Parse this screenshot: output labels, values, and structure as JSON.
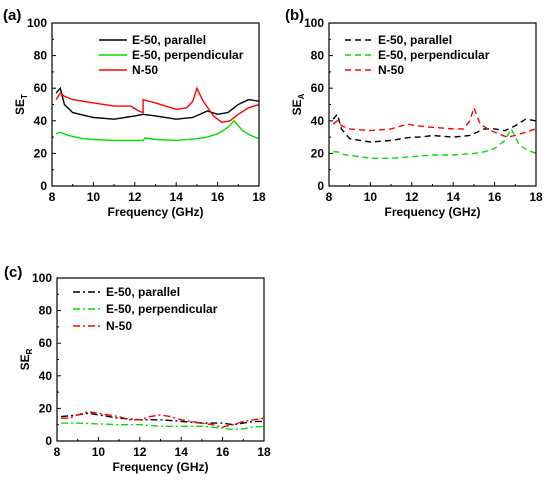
{
  "chart_data": [
    {
      "type": "line",
      "panel_label": "(a)",
      "xlabel": "Frequency (GHz)",
      "ylabel_main": "SE",
      "ylabel_sub": "T",
      "xlim": [
        8,
        18
      ],
      "ylim": [
        0,
        100
      ],
      "xticks": [
        8,
        10,
        12,
        14,
        16,
        18
      ],
      "yticks": [
        0,
        20,
        40,
        60,
        80,
        100
      ],
      "legend_position": "top-right",
      "series": [
        {
          "name": "E-50, parallel",
          "color": "#000000",
          "dash": "solid",
          "x": [
            8.2,
            8.4,
            8.6,
            9,
            10,
            11,
            12,
            12.4,
            13,
            14,
            14.8,
            15.5,
            16,
            16.5,
            17,
            17.5,
            18
          ],
          "y": [
            57,
            60,
            50,
            45,
            42,
            41,
            43,
            44,
            43,
            41,
            42,
            46,
            44,
            45,
            50,
            53,
            52
          ]
        },
        {
          "name": "E-50, perpendicular",
          "color": "#00dd00",
          "dash": "solid",
          "x": [
            8.2,
            8.4,
            8.8,
            9.5,
            10,
            11,
            12,
            12.4,
            12.5,
            13,
            14,
            15,
            15.5,
            16,
            16.5,
            16.8,
            17.2,
            17.6,
            18
          ],
          "y": [
            32,
            33,
            31,
            29,
            28.5,
            28,
            28,
            28,
            29.5,
            28.5,
            28,
            29,
            30,
            32,
            36,
            40,
            34,
            31,
            29
          ]
        },
        {
          "name": "N-50",
          "color": "#ff0000",
          "dash": "solid",
          "x": [
            8.2,
            8.4,
            8.6,
            9,
            10,
            11,
            11.8,
            12.2,
            12.4,
            12.4,
            13,
            14,
            14.5,
            14.8,
            15,
            15.3,
            15.8,
            16.2,
            16.6,
            17,
            17.5,
            18
          ],
          "y": [
            53,
            57,
            55,
            53,
            51,
            49,
            49,
            46,
            45,
            53,
            51,
            47,
            48,
            52,
            60,
            52,
            43,
            39,
            40,
            44,
            48,
            50
          ]
        }
      ]
    },
    {
      "type": "line",
      "panel_label": "(b)",
      "xlabel": "Frequency (GHz)",
      "ylabel_main": "SE",
      "ylabel_sub": "A",
      "xlim": [
        8,
        18
      ],
      "ylim": [
        0,
        100
      ],
      "xticks": [
        8,
        10,
        12,
        14,
        16,
        18
      ],
      "yticks": [
        0,
        20,
        40,
        60,
        80,
        100
      ],
      "legend_position": "top-right",
      "series": [
        {
          "name": "E-50, parallel",
          "color": "#000000",
          "dash": "dashed",
          "x": [
            8.2,
            8.4,
            8.6,
            9,
            10,
            11,
            12,
            12.4,
            13,
            14,
            14.8,
            15.5,
            16,
            16.5,
            17,
            17.5,
            18
          ],
          "y": [
            41,
            44,
            35,
            29,
            27,
            28,
            30,
            30,
            31,
            30,
            31,
            35,
            35,
            34,
            37,
            41,
            40
          ]
        },
        {
          "name": "E-50, perpendicular",
          "color": "#00dd00",
          "dash": "dashed",
          "x": [
            8.2,
            8.4,
            8.8,
            9.5,
            10,
            11,
            12,
            13,
            14,
            15,
            15.5,
            16,
            16.5,
            16.8,
            17.2,
            17.6,
            18
          ],
          "y": [
            21,
            21,
            19,
            18,
            17,
            17,
            18,
            19,
            19,
            20,
            21,
            23,
            28,
            35,
            25,
            22,
            20
          ]
        },
        {
          "name": "N-50",
          "color": "#ff0000",
          "dash": "dashed",
          "x": [
            8.2,
            8.4,
            8.6,
            9,
            10,
            11,
            11.8,
            12.2,
            13,
            14,
            14.5,
            14.8,
            15,
            15.3,
            15.8,
            16.2,
            16.6,
            17,
            17.5,
            18
          ],
          "y": [
            38,
            40,
            37,
            35,
            34,
            35,
            38,
            37,
            36,
            35,
            35,
            40,
            48,
            38,
            34,
            32,
            30,
            31,
            33,
            35
          ]
        }
      ]
    },
    {
      "type": "line",
      "panel_label": "(c)",
      "xlabel": "Frequency (GHz)",
      "ylabel_main": "SE",
      "ylabel_sub": "R",
      "xlim": [
        8,
        18
      ],
      "ylim": [
        0,
        100
      ],
      "xticks": [
        8,
        10,
        12,
        14,
        16,
        18
      ],
      "yticks": [
        0,
        20,
        40,
        60,
        80,
        100
      ],
      "legend_position": "top-left",
      "series": [
        {
          "name": "E-50, parallel",
          "color": "#000000",
          "dash": "dashdot",
          "x": [
            8.2,
            9,
            9.5,
            10,
            11,
            12,
            12.5,
            13,
            14,
            15,
            16,
            16.5,
            17,
            17.5,
            18
          ],
          "y": [
            15,
            16,
            17,
            16,
            14,
            13,
            13,
            13,
            12,
            11,
            11,
            10,
            11,
            12,
            12
          ]
        },
        {
          "name": "E-50, perpendicular",
          "color": "#00dd00",
          "dash": "dashdot",
          "x": [
            8.2,
            9,
            10,
            11,
            12,
            13,
            14,
            15,
            16,
            16.5,
            17,
            17.5,
            18
          ],
          "y": [
            11,
            11,
            10.5,
            10,
            10,
            9,
            9,
            9,
            8,
            7,
            7.5,
            8.5,
            9
          ]
        },
        {
          "name": "N-50",
          "color": "#ff0000",
          "dash": "dashdot",
          "x": [
            8.2,
            8.6,
            9,
            9.5,
            10,
            11,
            11.5,
            12,
            12.5,
            13,
            13.5,
            14,
            15,
            15.5,
            16,
            16.5,
            17,
            17.5,
            18
          ],
          "y": [
            14,
            14,
            16,
            18,
            17,
            15,
            13,
            13,
            15,
            16,
            15,
            13,
            11,
            10,
            8.5,
            10,
            12,
            13,
            14
          ]
        }
      ]
    }
  ]
}
